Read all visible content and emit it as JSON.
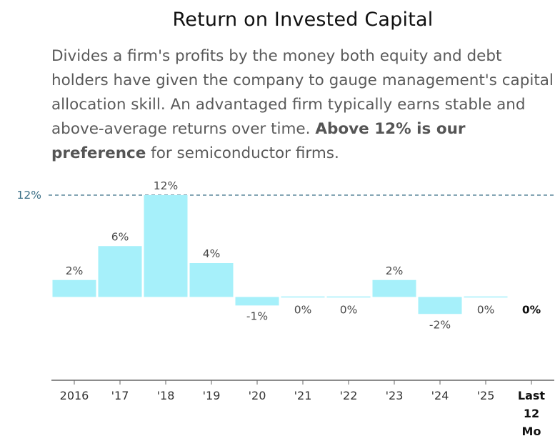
{
  "title": "Return on Invested Capital",
  "description": {
    "part1": "Divides a firm's profits by the money both equity and debt holders have given the company to gauge management's capital allocation skill. An advantaged firm typically earns stable and above-average returns over time. ",
    "bold": "Above 12% is our preference",
    "part2": " for semiconductor firms."
  },
  "colors": {
    "bar": "#a6f0fa",
    "reference_line": "#3a6f86",
    "axis": "#666666"
  },
  "chart_data": {
    "type": "bar",
    "categories": [
      "2016",
      "'17",
      "'18",
      "'19",
      "'20",
      "'21",
      "'22",
      "'23",
      "'24",
      "'25",
      "Last 12 Mo"
    ],
    "values": [
      2,
      6,
      12,
      4,
      -1,
      0,
      0,
      2,
      -2,
      0,
      0
    ],
    "data_labels": [
      "2%",
      "6%",
      "12%",
      "4%",
      "-1%",
      "0%",
      "0%",
      "2%",
      "-2%",
      "0%",
      "0%"
    ],
    "highlight_last": true,
    "reference_line": {
      "value": 12,
      "label": "12%",
      "style": "dashed"
    },
    "ylim": [
      -10,
      12
    ]
  }
}
